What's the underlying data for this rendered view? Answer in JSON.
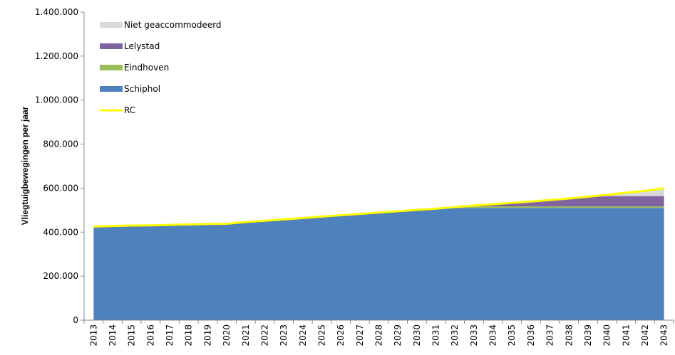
{
  "chart_data": {
    "type": "area",
    "title": "",
    "xlabel": "",
    "ylabel": "Vliegtuigbewegingen per jaar",
    "ylim": [
      0,
      1400000
    ],
    "yticks": [
      0,
      200000,
      400000,
      600000,
      800000,
      1000000,
      1200000,
      1400000
    ],
    "ytick_labels": [
      "0",
      "200.000",
      "400.000",
      "600.000",
      "800.000",
      "1.000.000",
      "1.200.000",
      "1.400.000"
    ],
    "grid": false,
    "legend_position": "top-left",
    "categories": [
      "2013",
      "2014",
      "2015",
      "2016",
      "2017",
      "2018",
      "2019",
      "2020",
      "2021",
      "2022",
      "2023",
      "2024",
      "2025",
      "2026",
      "2027",
      "2028",
      "2029",
      "2030",
      "2031",
      "2032",
      "2033",
      "2034",
      "2035",
      "2036",
      "2037",
      "2038",
      "2039",
      "2040",
      "2041",
      "2042",
      "2043"
    ],
    "series": [
      {
        "name": "Schiphol",
        "color": "#4f81bd",
        "kind": "stacked-area",
        "values": [
          421000,
          424000,
          426000,
          427000,
          429000,
          431000,
          433000,
          434000,
          442000,
          448000,
          454000,
          460000,
          467000,
          473000,
          479000,
          485000,
          491000,
          497000,
          503000,
          510000,
          510000,
          510000,
          510000,
          510000,
          510000,
          510000,
          510000,
          510000,
          510000,
          510000,
          510000
        ]
      },
      {
        "name": "Eindhoven",
        "color": "#9bbb59",
        "kind": "stacked-area",
        "values": [
          0,
          0,
          0,
          0,
          0,
          0,
          0,
          0,
          0,
          0,
          0,
          0,
          0,
          0,
          0,
          0,
          0,
          0,
          0,
          0,
          7000,
          7000,
          7000,
          7000,
          7000,
          7000,
          7000,
          7000,
          7000,
          7000,
          7000
        ]
      },
      {
        "name": "Lelystad",
        "color": "#8064a2",
        "kind": "stacked-area",
        "values": [
          0,
          0,
          0,
          0,
          0,
          0,
          0,
          0,
          0,
          0,
          0,
          0,
          0,
          0,
          0,
          0,
          0,
          0,
          0,
          0,
          2000,
          8000,
          14000,
          20000,
          27000,
          35000,
          43000,
          47000,
          47000,
          47000,
          47000
        ]
      },
      {
        "name": "Niet geaccommodeerd",
        "color": "#d9d9d9",
        "kind": "stacked-area",
        "values": [
          0,
          0,
          0,
          0,
          0,
          0,
          0,
          0,
          0,
          0,
          0,
          0,
          0,
          0,
          0,
          0,
          0,
          0,
          0,
          0,
          0,
          0,
          0,
          0,
          0,
          0,
          0,
          6000,
          15000,
          24000,
          36000
        ]
      },
      {
        "name": "RC",
        "color": "#ffff00",
        "kind": "line",
        "values": [
          425000,
          428000,
          430000,
          431000,
          433000,
          435000,
          437000,
          438000,
          446000,
          452000,
          458000,
          464000,
          471000,
          477000,
          483000,
          489000,
          495000,
          501000,
          507000,
          514000,
          521000,
          527000,
          533000,
          539000,
          546000,
          553000,
          561000,
          570000,
          579000,
          588000,
          600000
        ]
      }
    ],
    "legend_order": [
      "Niet geaccommodeerd",
      "Lelystad",
      "Eindhoven",
      "Schiphol",
      "RC"
    ]
  }
}
